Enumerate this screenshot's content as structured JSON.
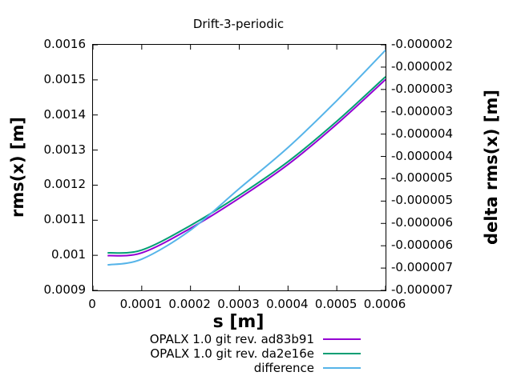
{
  "chart_data": {
    "type": "line",
    "title": "Drift-3-periodic",
    "xlabel": "s [m]",
    "ylabel_left": "rms(x) [m]",
    "ylabel_right": "delta rms(x) [m]",
    "xlim": [
      0,
      0.0006
    ],
    "ylim_left": [
      0.0009,
      0.0016
    ],
    "ylim_right": [
      -7.5e-06,
      -2e-06
    ],
    "grid": false,
    "legend_position": "below-center",
    "x_tick_labels": [
      "0",
      "0.0001",
      "0.0002",
      "0.0003",
      "0.0004",
      "0.0005",
      "0.0006"
    ],
    "y_tick_labels_left_bottom_to_top": [
      "0.0009",
      "0.001",
      "0.0011",
      "0.0012",
      "0.0013",
      "0.0014",
      "0.0015",
      "0.0016"
    ],
    "y_tick_labels_right_top_to_bottom": [
      "-0.000002",
      "-0.000002",
      "-0.000003",
      "-0.000003",
      "-0.000004",
      "-0.000004",
      "-0.000005",
      "-0.000005",
      "-0.000006",
      "-0.000006",
      "-0.000007",
      "-0.000007"
    ],
    "x": [
      3e-05,
      0.0001,
      0.0002,
      0.0003,
      0.0004,
      0.0005,
      0.0006
    ],
    "series": [
      {
        "name": "OPALX 1.0 git rev. ad83b91",
        "color": "#9400d3",
        "axis": "left",
        "values": [
          0.000999,
          0.001007,
          0.001077,
          0.001163,
          0.001259,
          0.001374,
          0.001501
        ]
      },
      {
        "name": "OPALX 1.0 git rev. da2e16e",
        "color": "#009e73",
        "axis": "left",
        "values": [
          0.001007,
          0.001015,
          0.001085,
          0.001171,
          0.001267,
          0.001382,
          0.001509
        ]
      },
      {
        "name": "difference",
        "color": "#56b4e9",
        "axis": "right",
        "values": [
          -6.93e-06,
          -6.8e-06,
          -6.15e-06,
          -5.22e-06,
          -4.3e-06,
          -3.25e-06,
          -2.12e-06
        ]
      }
    ],
    "colors": {
      "axis": "#000000",
      "background": "#ffffff",
      "text": "#000000"
    }
  }
}
